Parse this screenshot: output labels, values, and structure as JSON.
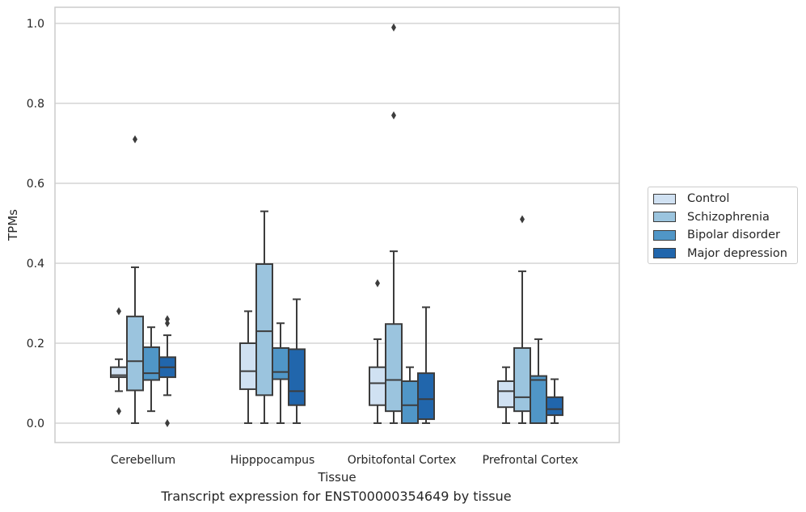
{
  "chart_data": {
    "type": "box",
    "xlabel": "Tissue",
    "ylabel": "TPMs",
    "ylim": [
      -0.05,
      1.04
    ],
    "yticks": [
      "0.0",
      "0.2",
      "0.4",
      "0.6",
      "0.8",
      "1.0"
    ],
    "grid": "horizontal",
    "legend_position": "right",
    "categories": [
      "Cerebellum",
      "Hipppocampus",
      "Orbitofontal Cortex",
      "Prefrontal Cortex"
    ],
    "series": [
      {
        "name": "Control",
        "color": "#d0e1f2",
        "boxes": [
          {
            "whislo": 0.08,
            "q1": 0.115,
            "med": 0.12,
            "q3": 0.14,
            "whishi": 0.16,
            "fliers": [
              0.28,
              0.03
            ]
          },
          {
            "whislo": 0.0,
            "q1": 0.085,
            "med": 0.13,
            "q3": 0.2,
            "whishi": 0.28,
            "fliers": []
          },
          {
            "whislo": 0.0,
            "q1": 0.045,
            "med": 0.1,
            "q3": 0.14,
            "whishi": 0.21,
            "fliers": [
              0.35
            ]
          },
          {
            "whislo": 0.0,
            "q1": 0.04,
            "med": 0.08,
            "q3": 0.105,
            "whishi": 0.14,
            "fliers": []
          }
        ]
      },
      {
        "name": "Schizophrenia",
        "color": "#9bc4de",
        "boxes": [
          {
            "whislo": 0.0,
            "q1": 0.082,
            "med": 0.155,
            "q3": 0.267,
            "whishi": 0.39,
            "fliers": [
              0.71
            ]
          },
          {
            "whislo": 0.0,
            "q1": 0.07,
            "med": 0.23,
            "q3": 0.398,
            "whishi": 0.53,
            "fliers": []
          },
          {
            "whislo": 0.0,
            "q1": 0.03,
            "med": 0.108,
            "q3": 0.248,
            "whishi": 0.43,
            "fliers": [
              0.77,
              0.99
            ]
          },
          {
            "whislo": 0.0,
            "q1": 0.03,
            "med": 0.065,
            "q3": 0.188,
            "whishi": 0.38,
            "fliers": [
              0.51
            ]
          }
        ]
      },
      {
        "name": "Bipolar disorder",
        "color": "#5096c7",
        "boxes": [
          {
            "whislo": 0.03,
            "q1": 0.108,
            "med": 0.125,
            "q3": 0.19,
            "whishi": 0.24,
            "fliers": []
          },
          {
            "whislo": 0.0,
            "q1": 0.11,
            "med": 0.128,
            "q3": 0.188,
            "whishi": 0.25,
            "fliers": []
          },
          {
            "whislo": 0.0,
            "q1": 0.0,
            "med": 0.045,
            "q3": 0.105,
            "whishi": 0.14,
            "fliers": []
          },
          {
            "whislo": 0.0,
            "q1": 0.0,
            "med": 0.108,
            "q3": 0.118,
            "whishi": 0.21,
            "fliers": []
          }
        ]
      },
      {
        "name": "Major depression",
        "color": "#2166ac",
        "boxes": [
          {
            "whislo": 0.07,
            "q1": 0.115,
            "med": 0.14,
            "q3": 0.165,
            "whishi": 0.22,
            "fliers": [
              0.26,
              0.25,
              0.0
            ]
          },
          {
            "whislo": 0.0,
            "q1": 0.045,
            "med": 0.08,
            "q3": 0.185,
            "whishi": 0.31,
            "fliers": []
          },
          {
            "whislo": 0.0,
            "q1": 0.01,
            "med": 0.06,
            "q3": 0.125,
            "whishi": 0.29,
            "fliers": []
          },
          {
            "whislo": 0.0,
            "q1": 0.02,
            "med": 0.035,
            "q3": 0.065,
            "whishi": 0.11,
            "fliers": []
          }
        ]
      }
    ]
  },
  "caption": "Transcript expression for ENST00000354649 by tissue"
}
